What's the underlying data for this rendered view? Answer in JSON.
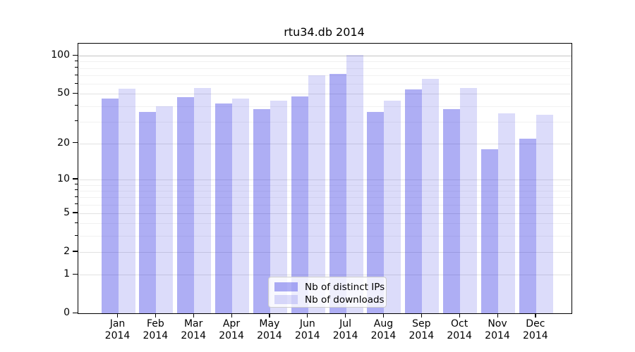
{
  "figure": {
    "title": "rtu34.db 2014"
  },
  "chart_data": {
    "type": "bar",
    "title": "rtu34.db 2014",
    "categories": [
      "Jan",
      "Feb",
      "Mar",
      "Apr",
      "May",
      "Jun",
      "Jul",
      "Aug",
      "Sep",
      "Oct",
      "Nov",
      "Dec"
    ],
    "x_tick_second_line": "2014",
    "series": [
      {
        "name": "Nb of distinct IPs",
        "fill": "rgba(30,30,225,0.36)",
        "approx_hex": "#aaaaf4",
        "values": [
          46,
          36,
          47,
          42,
          38,
          48,
          72,
          36,
          54,
          38,
          18,
          22
        ]
      },
      {
        "name": "Nb of downloads",
        "fill": "rgba(30,30,225,0.155)",
        "approx_hex": "#dcdcfa",
        "values": [
          55,
          40,
          56,
          46,
          44,
          70,
          101,
          44,
          66,
          56,
          35,
          34
        ]
      }
    ],
    "y_scale": "log1p",
    "ylim": [
      0,
      124
    ],
    "y_major_ticks": [
      100,
      50,
      20,
      10,
      5,
      2,
      1,
      0
    ],
    "y_minor_ticks": [
      3,
      4,
      6,
      7,
      8,
      9,
      30,
      40,
      60,
      70,
      80,
      90
    ],
    "grid": true,
    "legend_position": "lower center",
    "colors": {
      "background": "#ffffff",
      "spine": "#000000",
      "grid_major": "#e2e2e2",
      "grid_minor": "#f1f1f1",
      "grid_top_100": "#c4c4c4",
      "tick_label": "#000000"
    }
  }
}
